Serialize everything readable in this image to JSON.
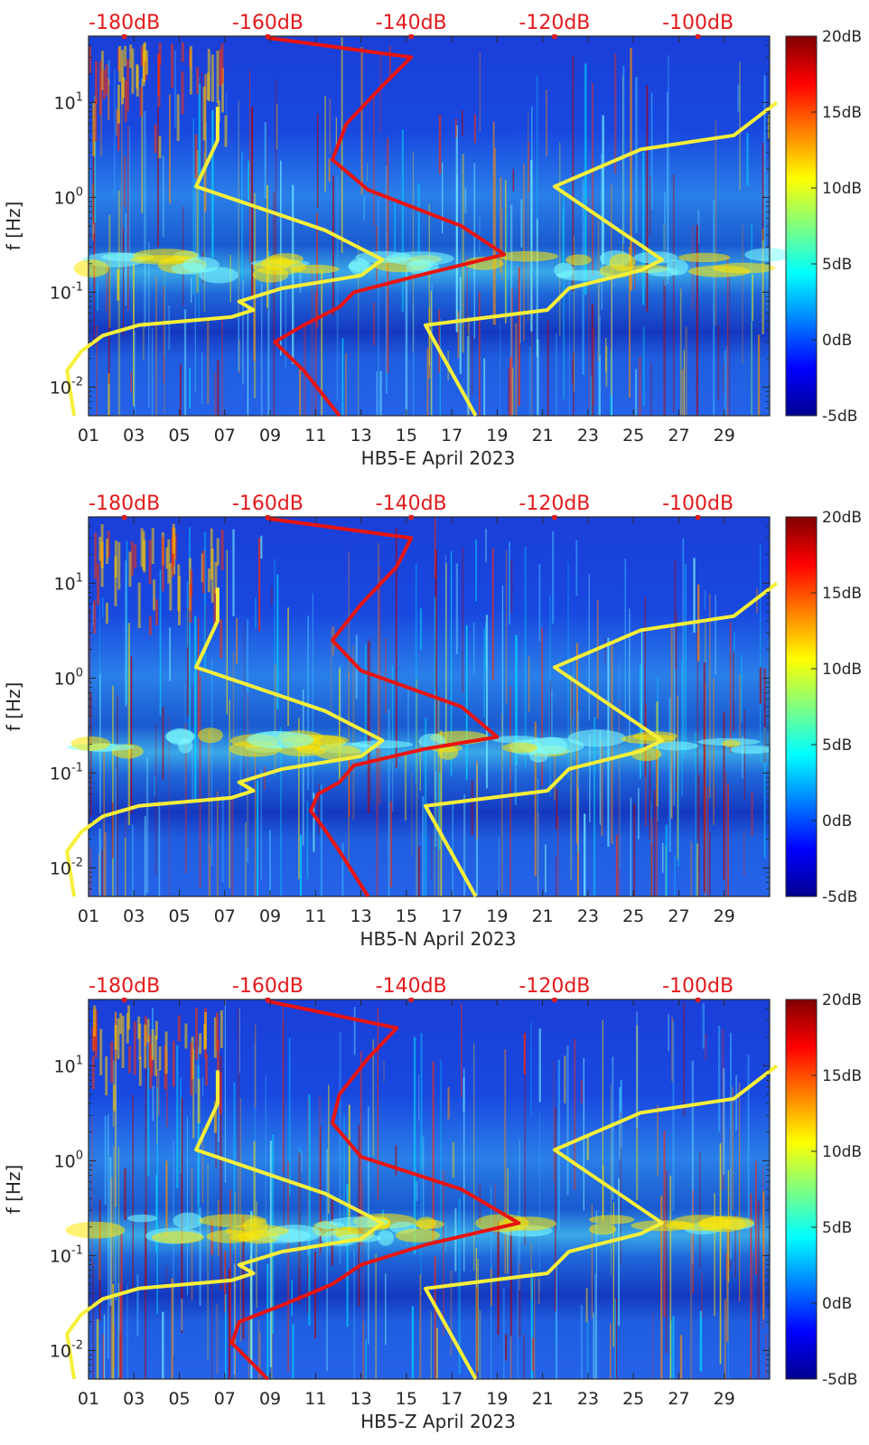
{
  "figure": {
    "title": "",
    "colors": {
      "red_curve": "#e8140f",
      "yellow_curve": "#f7ef3a",
      "red_label": "#e31a1c"
    }
  },
  "chart_data": [
    {
      "type": "heatmap",
      "station": "HB5-E",
      "xlabel": "HB5-E April 2023",
      "ylabel": "f [Hz]",
      "x_ticks": [
        "01",
        "03",
        "05",
        "07",
        "09",
        "11",
        "13",
        "15",
        "17",
        "19",
        "21",
        "23",
        "25",
        "27",
        "29"
      ],
      "x_range_days": [
        1,
        31
      ],
      "y_scale": "log",
      "y_range_hz": [
        0.005,
        50
      ],
      "y_ticks": [
        "10-2",
        "10-1",
        "100",
        "101"
      ],
      "top_labels": [
        "-180dB",
        "-160dB",
        "-140dB",
        "-120dB",
        "-100dB"
      ],
      "top_axis_range_db": [
        -185,
        -90
      ],
      "colorbar": {
        "labels": [
          "20dB",
          "15dB",
          "10dB",
          "5dB",
          "0dB",
          "-5dB"
        ],
        "range_db": [
          -5,
          20
        ]
      },
      "yellow_low_noise_model": [
        [
          -187,
          0.005
        ],
        [
          -188,
          0.015
        ],
        [
          -186,
          0.024
        ],
        [
          -183,
          0.035
        ],
        [
          -178,
          0.045
        ],
        [
          -165,
          0.055
        ],
        [
          -162,
          0.065
        ],
        [
          -164,
          0.08
        ],
        [
          -158,
          0.11
        ],
        [
          -147,
          0.15
        ],
        [
          -144,
          0.22
        ],
        [
          -152,
          0.45
        ],
        [
          -170,
          1.3
        ],
        [
          -167,
          4
        ],
        [
          -167,
          9
        ]
      ],
      "yellow_high_noise_model": [
        [
          -131,
          0.005
        ],
        [
          -138,
          0.045
        ],
        [
          -121,
          0.065
        ],
        [
          -118,
          0.11
        ],
        [
          -108,
          0.17
        ],
        [
          -105,
          0.22
        ],
        [
          -120,
          1.3
        ],
        [
          -108,
          3.2
        ],
        [
          -95,
          4.5
        ],
        [
          -89,
          10
        ]
      ],
      "red_psd": [
        [
          -150,
          0.005
        ],
        [
          -155,
          0.015
        ],
        [
          -158,
          0.025
        ],
        [
          -159,
          0.03
        ],
        [
          -155,
          0.045
        ],
        [
          -150,
          0.07
        ],
        [
          -148,
          0.1
        ],
        [
          -139,
          0.15
        ],
        [
          -127,
          0.25
        ],
        [
          -133,
          0.5
        ],
        [
          -146,
          1.2
        ],
        [
          -151,
          2.5
        ],
        [
          -149,
          6
        ],
        [
          -144,
          15
        ],
        [
          -140,
          30
        ],
        [
          -160,
          48
        ]
      ]
    },
    {
      "type": "heatmap",
      "station": "HB5-N",
      "xlabel": "HB5-N April 2023",
      "ylabel": "f [Hz]",
      "x_ticks": [
        "01",
        "03",
        "05",
        "07",
        "09",
        "11",
        "13",
        "15",
        "17",
        "19",
        "21",
        "23",
        "25",
        "27",
        "29"
      ],
      "x_range_days": [
        1,
        31
      ],
      "y_scale": "log",
      "y_range_hz": [
        0.005,
        50
      ],
      "y_ticks": [
        "10-2",
        "10-1",
        "100",
        "101"
      ],
      "top_labels": [
        "-180dB",
        "-160dB",
        "-140dB",
        "-120dB",
        "-100dB"
      ],
      "top_axis_range_db": [
        -185,
        -90
      ],
      "colorbar": {
        "labels": [
          "20dB",
          "15dB",
          "10dB",
          "5dB",
          "0dB",
          "-5dB"
        ],
        "range_db": [
          -5,
          20
        ]
      },
      "yellow_low_noise_model": [
        [
          -187,
          0.005
        ],
        [
          -188,
          0.015
        ],
        [
          -186,
          0.024
        ],
        [
          -183,
          0.035
        ],
        [
          -178,
          0.045
        ],
        [
          -165,
          0.055
        ],
        [
          -162,
          0.065
        ],
        [
          -164,
          0.08
        ],
        [
          -158,
          0.11
        ],
        [
          -147,
          0.15
        ],
        [
          -144,
          0.22
        ],
        [
          -152,
          0.45
        ],
        [
          -170,
          1.3
        ],
        [
          -167,
          4
        ],
        [
          -167,
          9
        ]
      ],
      "yellow_high_noise_model": [
        [
          -131,
          0.005
        ],
        [
          -138,
          0.045
        ],
        [
          -121,
          0.065
        ],
        [
          -118,
          0.11
        ],
        [
          -108,
          0.17
        ],
        [
          -105,
          0.22
        ],
        [
          -120,
          1.3
        ],
        [
          -108,
          3.2
        ],
        [
          -95,
          4.5
        ],
        [
          -89,
          10
        ]
      ],
      "red_psd": [
        [
          -146,
          0.005
        ],
        [
          -150,
          0.015
        ],
        [
          -152,
          0.025
        ],
        [
          -154,
          0.04
        ],
        [
          -153,
          0.06
        ],
        [
          -150,
          0.08
        ],
        [
          -148,
          0.12
        ],
        [
          -138,
          0.18
        ],
        [
          -128,
          0.24
        ],
        [
          -133,
          0.5
        ],
        [
          -147,
          1.2
        ],
        [
          -151,
          2.5
        ],
        [
          -147,
          6
        ],
        [
          -142,
          15
        ],
        [
          -140,
          30
        ],
        [
          -160,
          48
        ]
      ]
    },
    {
      "type": "heatmap",
      "station": "HB5-Z",
      "xlabel": "HB5-Z April 2023",
      "ylabel": "f [Hz]",
      "x_ticks": [
        "01",
        "03",
        "05",
        "07",
        "09",
        "11",
        "13",
        "15",
        "17",
        "19",
        "21",
        "23",
        "25",
        "27",
        "29"
      ],
      "x_range_days": [
        1,
        31
      ],
      "y_scale": "log",
      "y_range_hz": [
        0.005,
        50
      ],
      "y_ticks": [
        "10-2",
        "10-1",
        "100",
        "101"
      ],
      "top_labels": [
        "-180dB",
        "-160dB",
        "-140dB",
        "-120dB",
        "-100dB"
      ],
      "top_axis_range_db": [
        -185,
        -90
      ],
      "colorbar": {
        "labels": [
          "20dB",
          "15dB",
          "10dB",
          "5dB",
          "0dB",
          "-5dB"
        ],
        "range_db": [
          -5,
          20
        ]
      },
      "yellow_low_noise_model": [
        [
          -187,
          0.005
        ],
        [
          -188,
          0.015
        ],
        [
          -186,
          0.024
        ],
        [
          -183,
          0.035
        ],
        [
          -178,
          0.045
        ],
        [
          -165,
          0.055
        ],
        [
          -162,
          0.065
        ],
        [
          -164,
          0.08
        ],
        [
          -158,
          0.11
        ],
        [
          -147,
          0.15
        ],
        [
          -144,
          0.22
        ],
        [
          -152,
          0.45
        ],
        [
          -170,
          1.3
        ],
        [
          -167,
          4
        ],
        [
          -167,
          9
        ]
      ],
      "yellow_high_noise_model": [
        [
          -131,
          0.005
        ],
        [
          -138,
          0.045
        ],
        [
          -121,
          0.065
        ],
        [
          -118,
          0.11
        ],
        [
          -108,
          0.17
        ],
        [
          -105,
          0.22
        ],
        [
          -120,
          1.3
        ],
        [
          -108,
          3.2
        ],
        [
          -95,
          4.5
        ],
        [
          -89,
          10
        ]
      ],
      "red_psd": [
        [
          -160,
          0.005
        ],
        [
          -165,
          0.012
        ],
        [
          -164,
          0.02
        ],
        [
          -158,
          0.03
        ],
        [
          -151,
          0.05
        ],
        [
          -147,
          0.08
        ],
        [
          -138,
          0.13
        ],
        [
          -130,
          0.18
        ],
        [
          -125,
          0.22
        ],
        [
          -133,
          0.5
        ],
        [
          -147,
          1.1
        ],
        [
          -151,
          2.5
        ],
        [
          -150,
          5
        ],
        [
          -146,
          12
        ],
        [
          -142,
          25
        ],
        [
          -160,
          48
        ]
      ]
    }
  ]
}
